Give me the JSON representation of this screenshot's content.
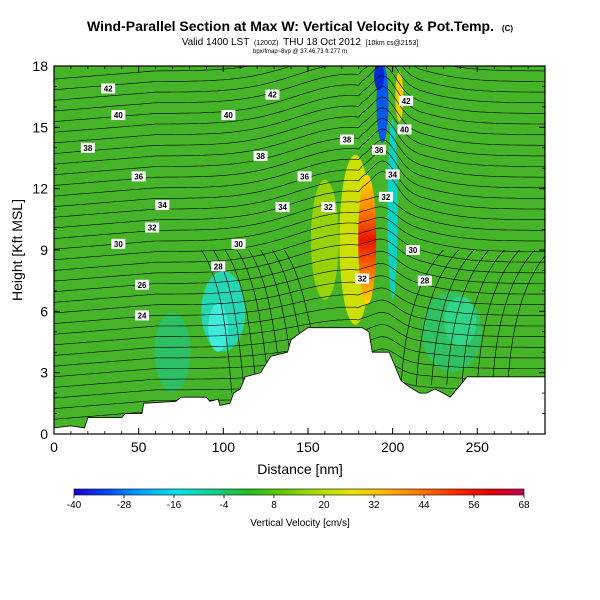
{
  "header": {
    "title": "Wind-Parallel Section at Max W: Vertical Velocity & Pot.Temp.",
    "title_suffix": "(C)",
    "valid_line": "Valid 1400 LST",
    "valid_time_small": "(1200Z)",
    "valid_date": "THU 18 Oct 2012",
    "valid_tail": "[10km cs@2153]",
    "small_line": "bpx/fmap~8vp @ 37.46,73 ft 277 m"
  },
  "chart_data": {
    "type": "heatmap",
    "xlabel": "Distance [nm]",
    "ylabel": "Height [Kft MSL]",
    "xlim": [
      0,
      290
    ],
    "ylim": [
      0,
      18
    ],
    "xticks": [
      0,
      50,
      100,
      150,
      200,
      250
    ],
    "yticks": [
      0,
      3,
      6,
      9,
      12,
      15,
      18
    ],
    "colorbar": {
      "label": "Vertical Velocity [cm/s]",
      "min": -40,
      "max": 68,
      "ticks": [
        -40,
        -28,
        -16,
        -4,
        8,
        20,
        32,
        44,
        56,
        68
      ],
      "colors": [
        "#1e00c8",
        "#0050ff",
        "#00aaff",
        "#00e6e6",
        "#10d090",
        "#20c020",
        "#60c800",
        "#aadc00",
        "#e6e600",
        "#ffb400",
        "#ff7800",
        "#ff2800",
        "#e60000",
        "#c8005a"
      ]
    },
    "terrain": [
      [
        0,
        0.3
      ],
      [
        10,
        0.4
      ],
      [
        18,
        0.3
      ],
      [
        20,
        0.8
      ],
      [
        40,
        0.8
      ],
      [
        42,
        1.0
      ],
      [
        52,
        1.0
      ],
      [
        53,
        1.5
      ],
      [
        72,
        1.6
      ],
      [
        75,
        1.8
      ],
      [
        90,
        1.8
      ],
      [
        92,
        1.6
      ],
      [
        97,
        1.7
      ],
      [
        98,
        1.4
      ],
      [
        104,
        1.5
      ],
      [
        106,
        2.0
      ],
      [
        110,
        2.2
      ],
      [
        113,
        2.8
      ],
      [
        122,
        3.0
      ],
      [
        128,
        3.8
      ],
      [
        138,
        4.0
      ],
      [
        140,
        4.6
      ],
      [
        143,
        4.8
      ],
      [
        150,
        5.2
      ],
      [
        182,
        5.2
      ],
      [
        186,
        5.0
      ],
      [
        188,
        4.0
      ],
      [
        193,
        4.0
      ],
      [
        198,
        4.0
      ],
      [
        200,
        3.6
      ],
      [
        203,
        3.0
      ],
      [
        205,
        2.6
      ],
      [
        210,
        2.3
      ],
      [
        216,
        2.0
      ],
      [
        220,
        2.0
      ],
      [
        225,
        2.2
      ],
      [
        230,
        2.0
      ],
      [
        234,
        1.8
      ],
      [
        236,
        2.0
      ],
      [
        244,
        2.8
      ],
      [
        290,
        2.8
      ]
    ],
    "contour_labels": [
      {
        "text": "42",
        "x": 32,
        "y": 16.9
      },
      {
        "text": "42",
        "x": 129,
        "y": 16.6
      },
      {
        "text": "42",
        "x": 208,
        "y": 16.3
      },
      {
        "text": "40",
        "x": 38,
        "y": 15.6
      },
      {
        "text": "40",
        "x": 103,
        "y": 15.6
      },
      {
        "text": "40",
        "x": 207,
        "y": 14.9
      },
      {
        "text": "38",
        "x": 20,
        "y": 14.0
      },
      {
        "text": "38",
        "x": 122,
        "y": 13.6
      },
      {
        "text": "38",
        "x": 173,
        "y": 14.4
      },
      {
        "text": "36",
        "x": 192,
        "y": 13.9
      },
      {
        "text": "36",
        "x": 50,
        "y": 12.6
      },
      {
        "text": "36",
        "x": 148,
        "y": 12.6
      },
      {
        "text": "34",
        "x": 200,
        "y": 12.7
      },
      {
        "text": "34",
        "x": 64,
        "y": 11.2
      },
      {
        "text": "34",
        "x": 135,
        "y": 11.1
      },
      {
        "text": "32",
        "x": 196,
        "y": 11.6
      },
      {
        "text": "32",
        "x": 162,
        "y": 11.1
      },
      {
        "text": "32",
        "x": 58,
        "y": 10.1
      },
      {
        "text": "30",
        "x": 38,
        "y": 9.3
      },
      {
        "text": "30",
        "x": 109,
        "y": 9.3
      },
      {
        "text": "30",
        "x": 212,
        "y": 9.0
      },
      {
        "text": "28",
        "x": 97,
        "y": 8.2
      },
      {
        "text": "28",
        "x": 219,
        "y": 7.5
      },
      {
        "text": "26",
        "x": 52,
        "y": 7.3
      },
      {
        "text": "24",
        "x": 52,
        "y": 5.8
      },
      {
        "text": "32",
        "x": 182,
        "y": 7.6
      }
    ]
  }
}
